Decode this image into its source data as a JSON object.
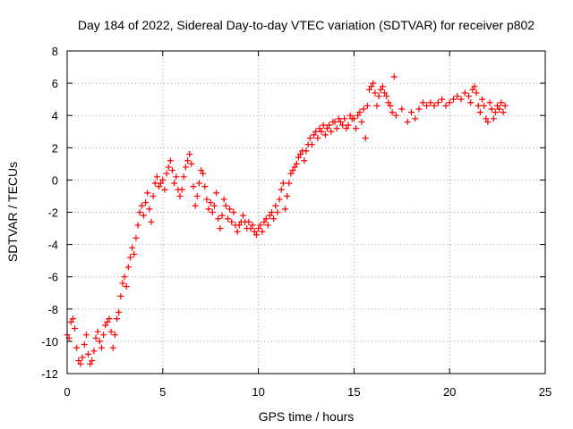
{
  "chart_data": {
    "type": "scatter",
    "title": "Day 184 of 2022, Sidereal Day-to-day VTEC variation (SDTVAR) for receiver p802",
    "xlabel": "GPS time / hours",
    "ylabel": "SDTVAR / TECUs",
    "xlim": [
      0,
      25
    ],
    "ylim": [
      -12,
      8
    ],
    "xticks": [
      0,
      5,
      10,
      15,
      20,
      25
    ],
    "yticks": [
      -12,
      -10,
      -8,
      -6,
      -4,
      -2,
      0,
      2,
      4,
      6,
      8
    ],
    "grid": true,
    "marker": "+",
    "color": "#ff0000",
    "series": [
      {
        "points": [
          [
            0.0,
            -9.6
          ],
          [
            0.1,
            -9.8
          ],
          [
            0.2,
            -8.8
          ],
          [
            0.3,
            -8.6
          ],
          [
            0.4,
            -9.2
          ],
          [
            0.5,
            -10.4
          ],
          [
            0.6,
            -11.2
          ],
          [
            0.7,
            -11.4
          ],
          [
            0.8,
            -11.0
          ],
          [
            0.9,
            -10.2
          ],
          [
            1.0,
            -9.6
          ],
          [
            1.1,
            -10.8
          ],
          [
            1.2,
            -11.4
          ],
          [
            1.3,
            -11.2
          ],
          [
            1.4,
            -10.6
          ],
          [
            1.5,
            -9.8
          ],
          [
            1.6,
            -9.4
          ],
          [
            1.7,
            -10.0
          ],
          [
            1.8,
            -10.4
          ],
          [
            1.9,
            -9.6
          ],
          [
            2.0,
            -9.0
          ],
          [
            2.1,
            -8.8
          ],
          [
            2.2,
            -8.6
          ],
          [
            2.3,
            -9.4
          ],
          [
            2.4,
            -10.4
          ],
          [
            2.5,
            -9.6
          ],
          [
            2.6,
            -8.6
          ],
          [
            2.7,
            -8.2
          ],
          [
            2.8,
            -7.2
          ],
          [
            2.9,
            -6.4
          ],
          [
            3.0,
            -6.0
          ],
          [
            3.1,
            -6.6
          ],
          [
            3.2,
            -5.4
          ],
          [
            3.3,
            -4.8
          ],
          [
            3.4,
            -4.2
          ],
          [
            3.5,
            -4.6
          ],
          [
            3.6,
            -3.6
          ],
          [
            3.7,
            -2.8
          ],
          [
            3.8,
            -2.0
          ],
          [
            3.9,
            -1.6
          ],
          [
            4.0,
            -2.2
          ],
          [
            4.1,
            -1.4
          ],
          [
            4.2,
            -0.8
          ],
          [
            4.3,
            -1.8
          ],
          [
            4.4,
            -2.6
          ],
          [
            4.5,
            -1.0
          ],
          [
            4.6,
            -0.2
          ],
          [
            4.7,
            0.2
          ],
          [
            4.8,
            -0.4
          ],
          [
            4.9,
            -0.2
          ],
          [
            5.0,
            0.0
          ],
          [
            5.1,
            -0.6
          ],
          [
            5.2,
            0.4
          ],
          [
            5.3,
            0.8
          ],
          [
            5.4,
            1.2
          ],
          [
            5.5,
            0.6
          ],
          [
            5.6,
            -0.2
          ],
          [
            5.7,
            0.2
          ],
          [
            5.8,
            -0.6
          ],
          [
            5.9,
            -1.0
          ],
          [
            6.0,
            -0.6
          ],
          [
            6.1,
            0.2
          ],
          [
            6.2,
            0.8
          ],
          [
            6.3,
            1.2
          ],
          [
            6.4,
            1.6
          ],
          [
            6.5,
            1.0
          ],
          [
            6.6,
            -0.4
          ],
          [
            6.7,
            -1.6
          ],
          [
            6.8,
            -1.0
          ],
          [
            6.9,
            -0.2
          ],
          [
            7.0,
            0.6
          ],
          [
            7.1,
            0.4
          ],
          [
            7.2,
            -0.4
          ],
          [
            7.3,
            -1.2
          ],
          [
            7.4,
            -1.8
          ],
          [
            7.5,
            -1.4
          ],
          [
            7.6,
            -2.0
          ],
          [
            7.7,
            -1.6
          ],
          [
            7.8,
            -0.8
          ],
          [
            7.9,
            -2.4
          ],
          [
            8.0,
            -3.0
          ],
          [
            8.1,
            -2.2
          ],
          [
            8.2,
            -1.2
          ],
          [
            8.3,
            -1.6
          ],
          [
            8.4,
            -2.4
          ],
          [
            8.5,
            -1.8
          ],
          [
            8.6,
            -2.6
          ],
          [
            8.7,
            -2.0
          ],
          [
            8.8,
            -2.8
          ],
          [
            8.9,
            -3.2
          ],
          [
            9.0,
            -2.8
          ],
          [
            9.1,
            -2.6
          ],
          [
            9.2,
            -2.2
          ],
          [
            9.3,
            -2.6
          ],
          [
            9.4,
            -3.0
          ],
          [
            9.5,
            -2.6
          ],
          [
            9.6,
            -3.0
          ],
          [
            9.7,
            -2.8
          ],
          [
            9.8,
            -3.2
          ],
          [
            9.9,
            -3.4
          ],
          [
            10.0,
            -3.0
          ],
          [
            10.1,
            -2.8
          ],
          [
            10.2,
            -3.2
          ],
          [
            10.3,
            -2.6
          ],
          [
            10.4,
            -2.4
          ],
          [
            10.5,
            -2.8
          ],
          [
            10.6,
            -2.2
          ],
          [
            10.7,
            -2.0
          ],
          [
            10.8,
            -2.4
          ],
          [
            10.9,
            -1.6
          ],
          [
            11.0,
            -2.0
          ],
          [
            11.1,
            -1.2
          ],
          [
            11.2,
            -0.6
          ],
          [
            11.3,
            -0.2
          ],
          [
            11.4,
            -1.8
          ],
          [
            11.5,
            -1.0
          ],
          [
            11.6,
            -0.2
          ],
          [
            11.7,
            0.4
          ],
          [
            11.8,
            0.6
          ],
          [
            11.9,
            0.8
          ],
          [
            12.0,
            1.0
          ],
          [
            12.1,
            1.4
          ],
          [
            12.2,
            1.6
          ],
          [
            12.3,
            1.8
          ],
          [
            12.4,
            1.2
          ],
          [
            12.5,
            1.8
          ],
          [
            12.6,
            2.2
          ],
          [
            12.7,
            2.6
          ],
          [
            12.8,
            2.2
          ],
          [
            12.9,
            2.8
          ],
          [
            13.0,
            3.0
          ],
          [
            13.1,
            2.6
          ],
          [
            13.2,
            3.2
          ],
          [
            13.3,
            3.0
          ],
          [
            13.4,
            3.4
          ],
          [
            13.5,
            2.8
          ],
          [
            13.6,
            3.2
          ],
          [
            13.7,
            3.4
          ],
          [
            13.8,
            3.0
          ],
          [
            13.9,
            3.6
          ],
          [
            14.0,
            3.6
          ],
          [
            14.1,
            3.2
          ],
          [
            14.2,
            3.8
          ],
          [
            14.3,
            3.6
          ],
          [
            14.4,
            3.4
          ],
          [
            14.5,
            3.8
          ],
          [
            14.6,
            3.2
          ],
          [
            14.7,
            3.4
          ],
          [
            14.8,
            4.0
          ],
          [
            14.9,
            3.8
          ],
          [
            15.0,
            3.8
          ],
          [
            15.1,
            3.2
          ],
          [
            15.2,
            4.0
          ],
          [
            15.3,
            4.2
          ],
          [
            15.4,
            3.6
          ],
          [
            15.5,
            4.4
          ],
          [
            15.6,
            2.6
          ],
          [
            15.7,
            4.6
          ],
          [
            15.8,
            5.6
          ],
          [
            15.9,
            5.8
          ],
          [
            16.0,
            6.0
          ],
          [
            16.1,
            5.4
          ],
          [
            16.2,
            4.6
          ],
          [
            16.3,
            5.2
          ],
          [
            16.4,
            5.6
          ],
          [
            16.5,
            5.8
          ],
          [
            16.6,
            5.4
          ],
          [
            16.7,
            5.2
          ],
          [
            16.8,
            4.8
          ],
          [
            16.9,
            4.6
          ],
          [
            17.0,
            4.2
          ],
          [
            17.1,
            6.4
          ],
          [
            17.2,
            4.0
          ],
          [
            17.5,
            4.4
          ],
          [
            17.8,
            3.6
          ],
          [
            18.0,
            4.2
          ],
          [
            18.2,
            3.8
          ],
          [
            18.4,
            4.4
          ],
          [
            18.6,
            4.8
          ],
          [
            18.8,
            4.6
          ],
          [
            19.0,
            4.8
          ],
          [
            19.2,
            4.6
          ],
          [
            19.4,
            4.8
          ],
          [
            19.6,
            5.0
          ],
          [
            19.8,
            4.6
          ],
          [
            20.0,
            4.8
          ],
          [
            20.2,
            5.0
          ],
          [
            20.4,
            5.2
          ],
          [
            20.6,
            5.0
          ],
          [
            20.8,
            5.4
          ],
          [
            21.0,
            5.2
          ],
          [
            21.1,
            4.8
          ],
          [
            21.2,
            5.6
          ],
          [
            21.3,
            5.8
          ],
          [
            21.4,
            5.4
          ],
          [
            21.5,
            4.6
          ],
          [
            21.6,
            4.2
          ],
          [
            21.7,
            5.0
          ],
          [
            21.8,
            4.6
          ],
          [
            21.9,
            3.8
          ],
          [
            22.0,
            3.6
          ],
          [
            22.1,
            4.8
          ],
          [
            22.2,
            4.4
          ],
          [
            22.3,
            3.8
          ],
          [
            22.4,
            4.2
          ],
          [
            22.5,
            4.6
          ],
          [
            22.6,
            4.4
          ],
          [
            22.7,
            4.8
          ],
          [
            22.8,
            4.2
          ],
          [
            22.9,
            4.6
          ]
        ]
      }
    ]
  }
}
